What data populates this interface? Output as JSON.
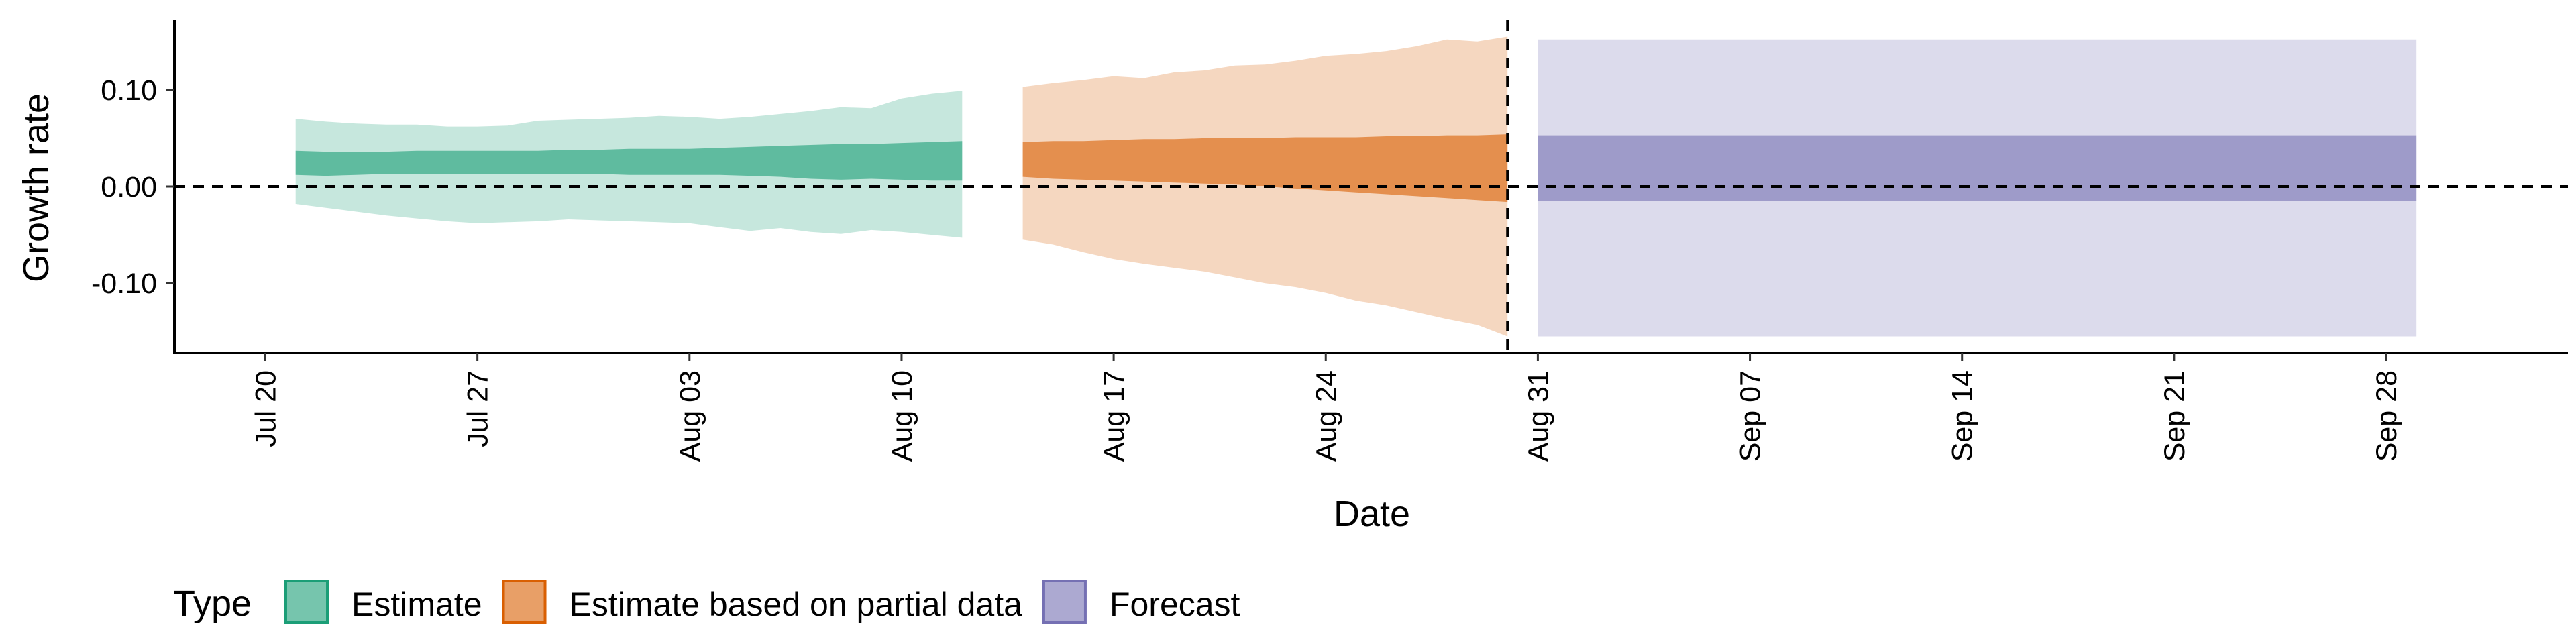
{
  "chart_data": {
    "type": "area",
    "xlabel": "Date",
    "ylabel": "Growth rate",
    "ylim": [
      -0.172,
      0.172
    ],
    "yticks": [
      {
        "value": 0.1,
        "label": "0.10"
      },
      {
        "value": 0.0,
        "label": "0.00"
      },
      {
        "value": -0.1,
        "label": "-0.10"
      }
    ],
    "xlim": [
      "2020-07-17",
      "2020-10-04"
    ],
    "xticks": [
      {
        "date": "2020-07-20",
        "label": "Jul 20"
      },
      {
        "date": "2020-07-27",
        "label": "Jul 27"
      },
      {
        "date": "2020-08-03",
        "label": "Aug 03"
      },
      {
        "date": "2020-08-10",
        "label": "Aug 10"
      },
      {
        "date": "2020-08-17",
        "label": "Aug 17"
      },
      {
        "date": "2020-08-24",
        "label": "Aug 24"
      },
      {
        "date": "2020-08-31",
        "label": "Aug 31"
      },
      {
        "date": "2020-09-07",
        "label": "Sep 07"
      },
      {
        "date": "2020-09-14",
        "label": "Sep 14"
      },
      {
        "date": "2020-09-21",
        "label": "Sep 21"
      },
      {
        "date": "2020-09-28",
        "label": "Sep 28"
      }
    ],
    "hline": 0,
    "vline": "2020-08-30",
    "legend": {
      "title": "Type",
      "position": "bottom",
      "items": [
        {
          "label": "Estimate",
          "color": "#1b9e77"
        },
        {
          "label": "Estimate based on partial data",
          "color": "#d95f02"
        },
        {
          "label": "Forecast",
          "color": "#7570b3"
        }
      ]
    },
    "series": [
      {
        "type": "Estimate",
        "color": "#1b9e77",
        "dates": [
          "2020-07-21",
          "2020-07-22",
          "2020-07-23",
          "2020-07-24",
          "2020-07-25",
          "2020-07-26",
          "2020-07-27",
          "2020-07-28",
          "2020-07-29",
          "2020-07-30",
          "2020-07-31",
          "2020-08-01",
          "2020-08-02",
          "2020-08-03",
          "2020-08-04",
          "2020-08-05",
          "2020-08-06",
          "2020-08-07",
          "2020-08-08",
          "2020-08-09",
          "2020-08-10",
          "2020-08-11",
          "2020-08-12"
        ],
        "lower90": [
          -0.018,
          -0.022,
          -0.026,
          -0.03,
          -0.033,
          -0.036,
          -0.038,
          -0.037,
          -0.036,
          -0.034,
          -0.035,
          -0.036,
          -0.037,
          -0.038,
          -0.042,
          -0.046,
          -0.043,
          -0.047,
          -0.049,
          -0.045,
          -0.047,
          -0.05,
          -0.053
        ],
        "upper90": [
          0.07,
          0.067,
          0.065,
          0.064,
          0.064,
          0.062,
          0.062,
          0.063,
          0.068,
          0.069,
          0.07,
          0.071,
          0.073,
          0.072,
          0.07,
          0.072,
          0.075,
          0.078,
          0.082,
          0.081,
          0.091,
          0.096,
          0.099
        ],
        "lower50": [
          0.012,
          0.011,
          0.012,
          0.013,
          0.013,
          0.013,
          0.013,
          0.013,
          0.013,
          0.013,
          0.013,
          0.012,
          0.012,
          0.012,
          0.012,
          0.011,
          0.01,
          0.008,
          0.007,
          0.008,
          0.007,
          0.006,
          0.006
        ],
        "upper50": [
          0.037,
          0.036,
          0.036,
          0.036,
          0.037,
          0.037,
          0.037,
          0.037,
          0.037,
          0.038,
          0.038,
          0.039,
          0.039,
          0.039,
          0.04,
          0.041,
          0.042,
          0.043,
          0.044,
          0.044,
          0.045,
          0.046,
          0.047
        ]
      },
      {
        "type": "Estimate based on partial data",
        "color": "#d95f02",
        "dates": [
          "2020-08-14",
          "2020-08-15",
          "2020-08-16",
          "2020-08-17",
          "2020-08-18",
          "2020-08-19",
          "2020-08-20",
          "2020-08-21",
          "2020-08-22",
          "2020-08-23",
          "2020-08-24",
          "2020-08-25",
          "2020-08-26",
          "2020-08-27",
          "2020-08-28",
          "2020-08-29",
          "2020-08-30"
        ],
        "lower90": [
          -0.055,
          -0.06,
          -0.068,
          -0.075,
          -0.08,
          -0.084,
          -0.088,
          -0.094,
          -0.1,
          -0.104,
          -0.11,
          -0.118,
          -0.123,
          -0.13,
          -0.137,
          -0.143,
          -0.155
        ],
        "upper90": [
          0.103,
          0.107,
          0.11,
          0.114,
          0.112,
          0.118,
          0.12,
          0.125,
          0.126,
          0.13,
          0.135,
          0.137,
          0.14,
          0.145,
          0.152,
          0.15,
          0.155
        ],
        "lower50": [
          0.01,
          0.008,
          0.007,
          0.006,
          0.005,
          0.004,
          0.003,
          0.002,
          0.0,
          -0.002,
          -0.004,
          -0.006,
          -0.008,
          -0.01,
          -0.012,
          -0.014,
          -0.016
        ],
        "upper50": [
          0.046,
          0.047,
          0.047,
          0.048,
          0.049,
          0.049,
          0.05,
          0.05,
          0.05,
          0.051,
          0.051,
          0.051,
          0.052,
          0.052,
          0.053,
          0.053,
          0.054
        ]
      },
      {
        "type": "Forecast",
        "color": "#7570b3",
        "dates": [
          "2020-08-31",
          "2020-09-29"
        ],
        "lower90": [
          -0.155,
          -0.155
        ],
        "upper90": [
          0.152,
          0.152
        ],
        "lower50": [
          -0.015,
          -0.015
        ],
        "upper50": [
          0.053,
          0.053
        ]
      }
    ]
  }
}
